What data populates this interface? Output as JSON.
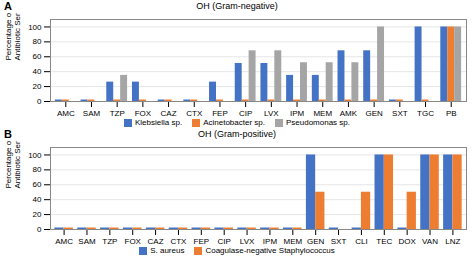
{
  "chart_data": [
    {
      "type": "bar",
      "title": "OH (Gram-negative)",
      "annotations": [
        "A"
      ],
      "ylabel": "Percentage of\nAntibiotic Sensitivity",
      "categories": [
        "AMC",
        "SAM",
        "TZP",
        "FOX",
        "CAZ",
        "CTX",
        "FEP",
        "CIP",
        "LVX",
        "IPM",
        "MEM",
        "AMK",
        "GEN",
        "SXT",
        "TGC",
        "PB"
      ],
      "series": [
        {
          "name": "Klebsiella sp.",
          "color": "#4472C4",
          "values": [
            2,
            2,
            26,
            26,
            2,
            2,
            26,
            51,
            51,
            35,
            35,
            68,
            68,
            2,
            100,
            100
          ]
        },
        {
          "name": "Acinetobacter sp.",
          "color": "#ED7D31",
          "values": [
            2,
            2,
            2,
            2,
            2,
            2,
            2,
            2,
            2,
            2,
            2,
            2,
            2,
            2,
            2,
            100
          ]
        },
        {
          "name": "Pseudomonas sp.",
          "color": "#A5A5A5",
          "values": [
            0,
            0,
            35,
            0,
            0,
            0,
            0,
            68,
            68,
            52,
            52,
            52,
            100,
            0,
            0,
            100
          ]
        }
      ],
      "ylim": [
        0,
        110
      ],
      "yticks": [
        0,
        20,
        40,
        60,
        80,
        100
      ],
      "grid": true,
      "legend": "bottom"
    },
    {
      "type": "bar",
      "title": "OH (Gram-positive)",
      "annotations": [
        "B"
      ],
      "ylabel": "Percentage of\nAntibiotic Sensitivity",
      "categories": [
        "AMC",
        "SAM",
        "TZP",
        "FOX",
        "CAZ",
        "CTX",
        "FEP",
        "CIP",
        "LVX",
        "IPM",
        "MEM",
        "GEN",
        "SXT",
        "CLI",
        "TEC",
        "DOX",
        "VAN",
        "LNZ"
      ],
      "series": [
        {
          "name": "S. aureus",
          "color": "#4472C4",
          "values": [
            2,
            2,
            2,
            2,
            2,
            2,
            2,
            2,
            2,
            2,
            2,
            100,
            2,
            2,
            100,
            2,
            100,
            100
          ]
        },
        {
          "name": "Coagulase-negative Staphylococcus",
          "color": "#ED7D31",
          "values": [
            2,
            2,
            2,
            2,
            2,
            2,
            2,
            2,
            2,
            2,
            2,
            50,
            0,
            50,
            100,
            50,
            100,
            100
          ]
        }
      ],
      "ylim": [
        0,
        110
      ],
      "yticks": [
        0,
        20,
        40,
        60,
        80,
        100
      ],
      "grid": true,
      "legend": "bottom"
    }
  ]
}
